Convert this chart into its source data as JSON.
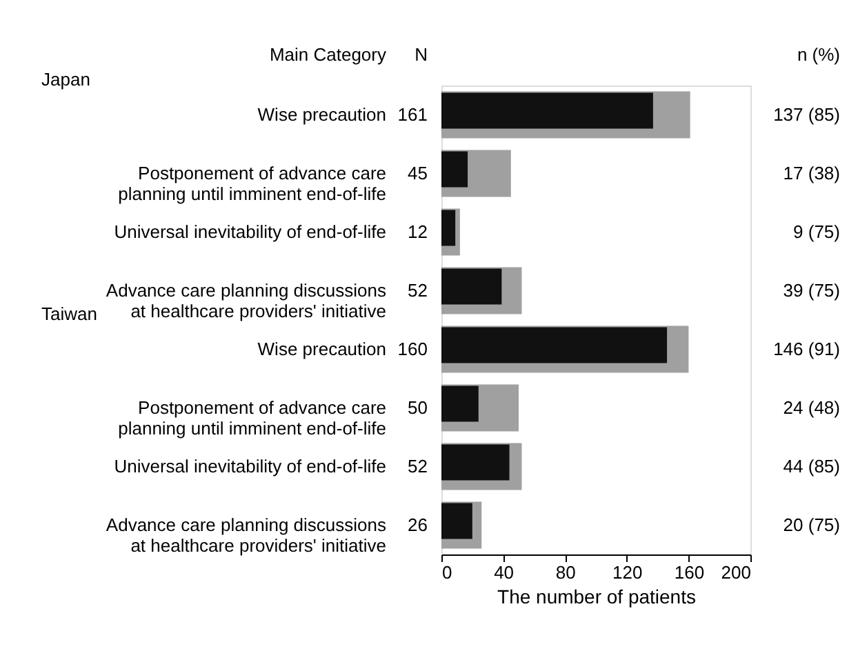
{
  "chart_data": {
    "type": "bar",
    "orientation": "horizontal",
    "categories": [
      "Wise precaution",
      "Postponement of advance care\nplanning until imminent end-of-life",
      "Universal inevitability of end-of-life",
      "Advance care planning discussions\nat healthcare providers' initiative",
      "Wise precaution",
      "Postponement of advance care\nplanning until imminent end-of-life",
      "Universal inevitability of end-of-life",
      "Advance care planning discussions\nat healthcare providers' initiative"
    ],
    "series": [
      {
        "color": "#a0a0a0",
        "values": [
          161,
          45,
          12,
          52,
          160,
          50,
          52,
          26
        ],
        "value_labels": [
          "161",
          "45",
          "12",
          "52",
          "160",
          "50",
          "52",
          "26"
        ]
      },
      {
        "color": "#111111",
        "values": [
          137,
          17,
          9,
          39,
          146,
          24,
          44,
          20
        ],
        "value_labels": [
          "137 (85)",
          "17 (38)",
          "9 (75)",
          "39 (75)",
          "146 (91)",
          "24 (48)",
          "44 (85)",
          "20 (75)"
        ]
      }
    ],
    "xlim": [
      0,
      200
    ],
    "xticks": [
      0,
      40,
      80,
      120,
      160,
      200
    ],
    "xlabel": "The number of patients",
    "annotations": [
      "Main Category",
      "N",
      "n (%)",
      "Japan",
      "Taiwan"
    ]
  }
}
